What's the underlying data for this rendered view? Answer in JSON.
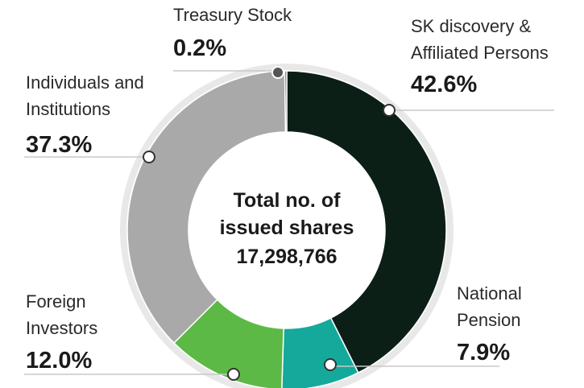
{
  "chart_data": {
    "type": "donut",
    "center_label": "Total no. of issued shares",
    "center_value": "17,298,766",
    "categories": [
      "SK discovery & Affiliated Persons",
      "National Pension",
      "Foreign Investors",
      "Individuals and Institutions",
      "Treasury Stock"
    ],
    "values": [
      42.6,
      7.9,
      12.0,
      37.3,
      0.2
    ],
    "value_labels": [
      "42.6%",
      "7.9%",
      "12.0%",
      "37.3%",
      "0.2%"
    ],
    "colors": [
      "#0b1f17",
      "#14a99b",
      "#5cb946",
      "#a9a9a9",
      "#555555"
    ]
  }
}
